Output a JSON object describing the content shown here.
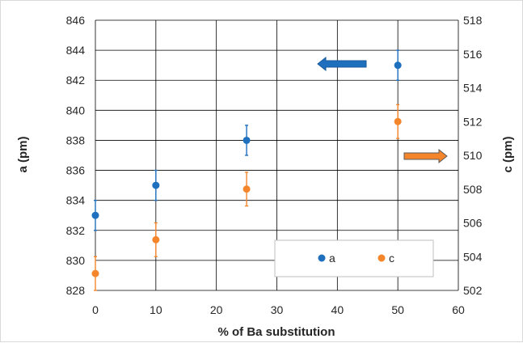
{
  "chart_data": {
    "type": "scatter",
    "xlabel": "% of Ba substitution",
    "ylabel_left": "a (pm)",
    "ylabel_right": "c (pm)",
    "xlim": [
      0,
      60
    ],
    "ylim_left": [
      828,
      846
    ],
    "ylim_right": [
      502,
      518
    ],
    "x_ticks": [
      "0",
      "10",
      "20",
      "30",
      "40",
      "50",
      "60"
    ],
    "y_left_ticks": [
      "828",
      "830",
      "832",
      "834",
      "836",
      "838",
      "840",
      "842",
      "844",
      "846"
    ],
    "y_right_ticks": [
      "502",
      "504",
      "506",
      "508",
      "510",
      "512",
      "514",
      "516",
      "518"
    ],
    "grid": true,
    "legend_position": "bottom-right",
    "series": [
      {
        "name": "a",
        "axis": "left",
        "color": "#1f6fbf",
        "points": [
          {
            "x": 0,
            "y": 833,
            "err": 1
          },
          {
            "x": 10,
            "y": 835,
            "err": 1
          },
          {
            "x": 25,
            "y": 838,
            "err": 1
          },
          {
            "x": 50,
            "y": 843,
            "err": 1
          }
        ]
      },
      {
        "name": "c",
        "axis": "right",
        "color": "#f4852b",
        "points": [
          {
            "x": 0,
            "y": 503,
            "err": 1
          },
          {
            "x": 10,
            "y": 505,
            "err": 1
          },
          {
            "x": 25,
            "y": 508,
            "err": 1
          },
          {
            "x": 50,
            "y": 512,
            "err": 1
          }
        ]
      }
    ],
    "annotations": [
      {
        "type": "arrow",
        "direction": "left",
        "color": "#1f6fbf",
        "meaning": "series a uses left axis"
      },
      {
        "type": "arrow",
        "direction": "right",
        "color": "#f4852b",
        "meaning": "series c uses right axis"
      }
    ]
  }
}
